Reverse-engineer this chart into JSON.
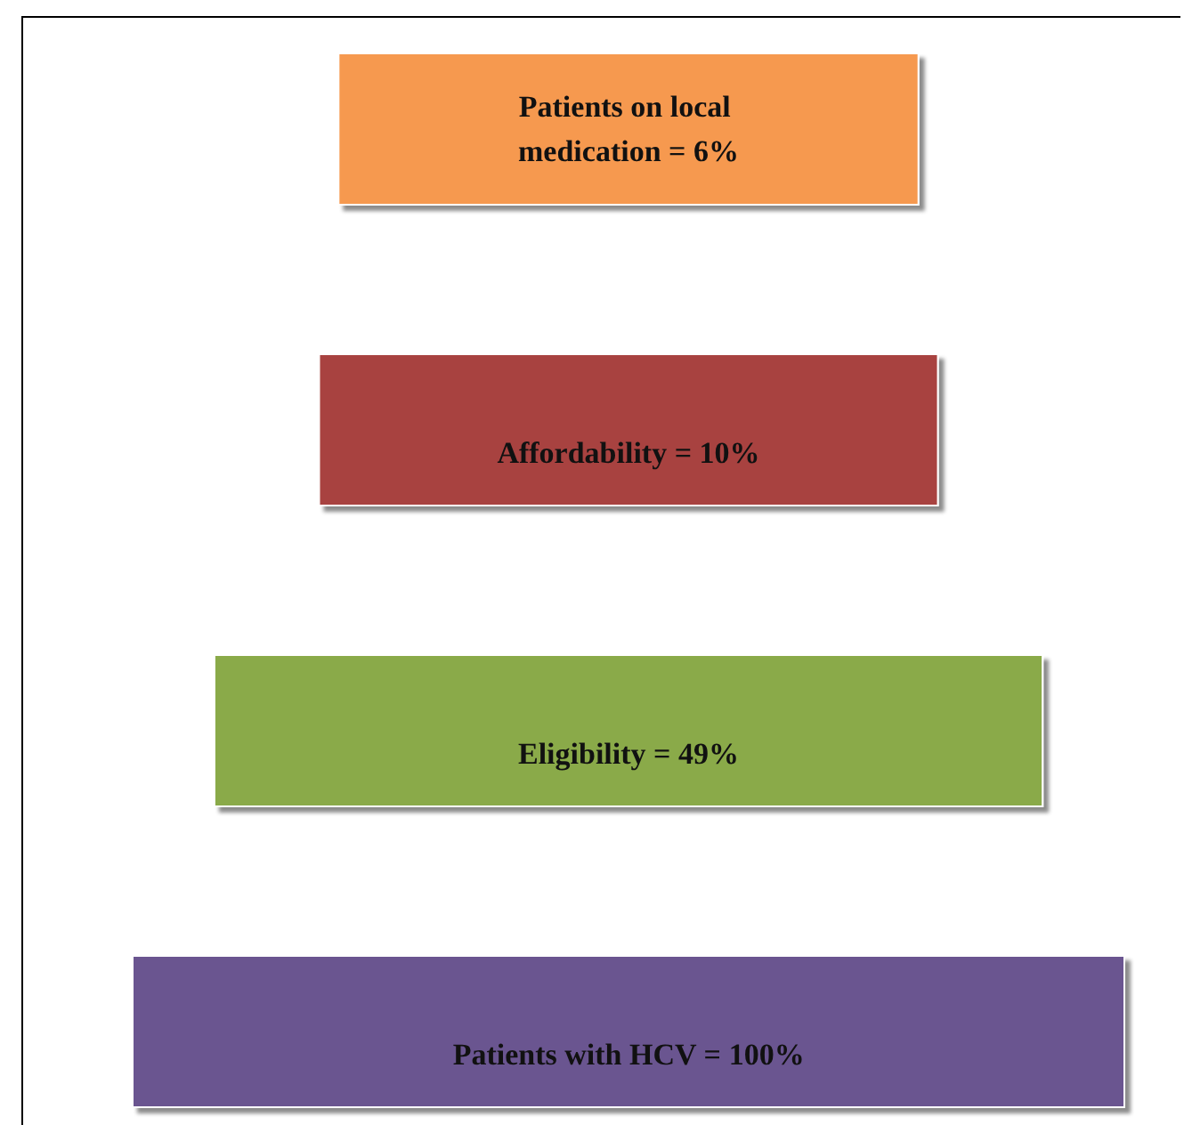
{
  "chart_data": {
    "type": "other",
    "categories": [
      "Patients with HCV =",
      "Eligibility =",
      "Affordability =",
      "Patients on local medication ="
    ],
    "values": [
      100,
      49,
      10,
      6
    ],
    "value_labels": [
      "100%",
      "49%",
      "10%",
      "6%"
    ],
    "colors": [
      "#6b5590",
      "#8aaa48",
      "#a8433f",
      "#f6994f"
    ]
  }
}
